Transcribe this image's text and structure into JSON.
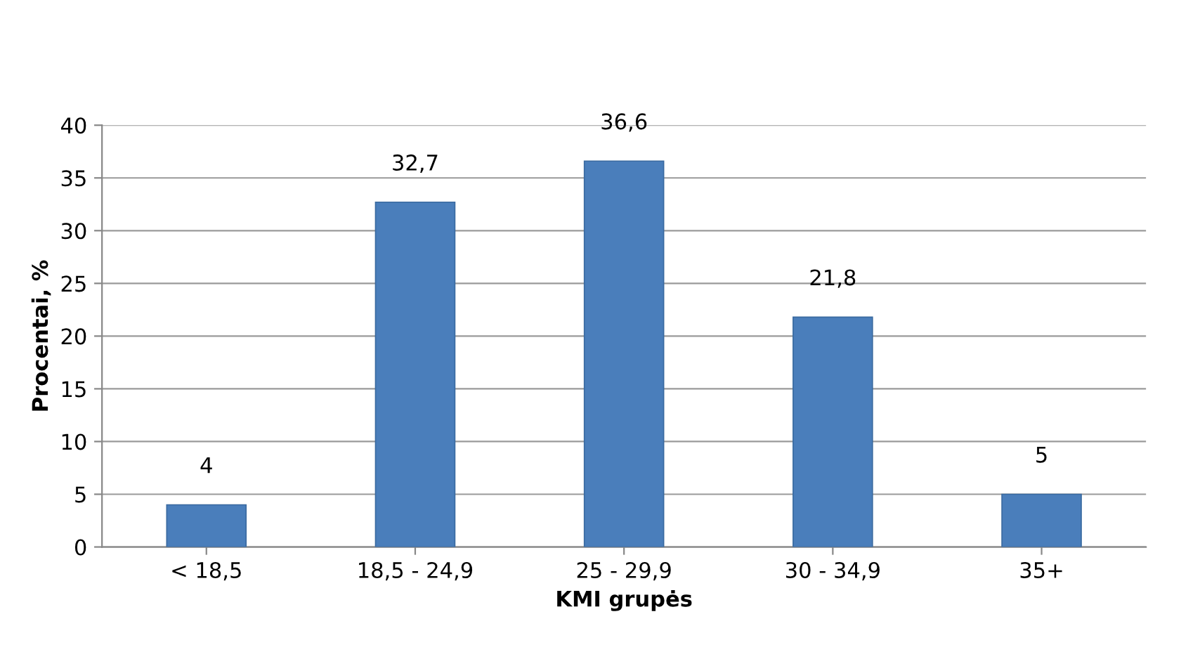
{
  "chart_data": {
    "type": "bar",
    "xlabel": "KMI grupės",
    "ylabel": "Procentai, %",
    "categories": [
      "< 18,5",
      "18,5 - 24,9",
      "25 - 29,9",
      "30 - 34,9",
      "35+"
    ],
    "values": [
      4,
      32.7,
      36.6,
      21.8,
      5
    ],
    "value_labels": [
      "4",
      "32,7",
      "36,6",
      "21,8",
      "5"
    ],
    "color": "#4a7ebb",
    "ylim": [
      0,
      40
    ],
    "yticks": [
      0,
      5,
      10,
      15,
      20,
      25,
      30,
      35,
      40
    ],
    "grid": "y",
    "legend": false
  }
}
